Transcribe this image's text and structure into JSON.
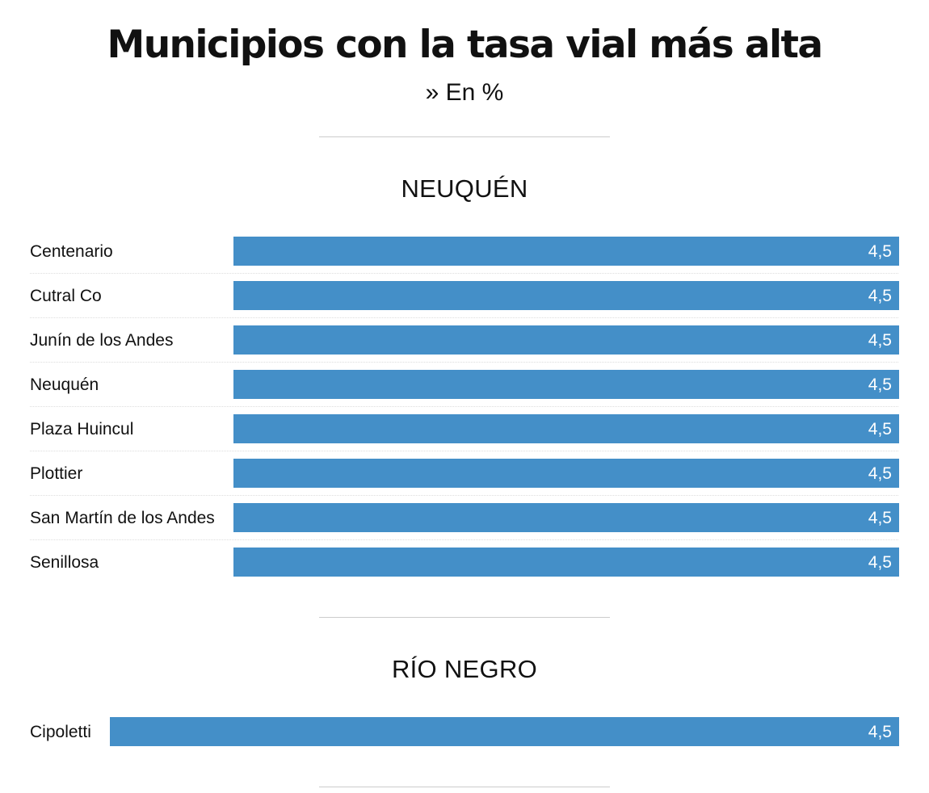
{
  "title": "Municipios con la tasa vial más alta",
  "subtitle": "» En %",
  "colors": {
    "bar": "#448fc8",
    "bar_label": "#ffffff",
    "text": "#111111",
    "row_separator": "#dddddd"
  },
  "chart_data": [
    {
      "type": "bar",
      "orientation": "horizontal",
      "title": "NEUQUÉN",
      "categories": [
        "Centenario",
        "Cutral Co",
        "Junín de los Andes",
        "Neuquén",
        "Plaza Huincul",
        "Plottier",
        "San Martín de los Andes",
        "Senillosa"
      ],
      "values": [
        4.5,
        4.5,
        4.5,
        4.5,
        4.5,
        4.5,
        4.5,
        4.5
      ],
      "value_labels": [
        "4,5",
        "4,5",
        "4,5",
        "4,5",
        "4,5",
        "4,5",
        "4,5",
        "4,5"
      ],
      "xlim": [
        0,
        4.5
      ],
      "grid": false
    },
    {
      "type": "bar",
      "orientation": "horizontal",
      "title": "RÍO NEGRO",
      "categories": [
        "Cipoletti"
      ],
      "values": [
        4.5
      ],
      "value_labels": [
        "4,5"
      ],
      "xlim": [
        0,
        4.5
      ],
      "grid": false
    }
  ]
}
